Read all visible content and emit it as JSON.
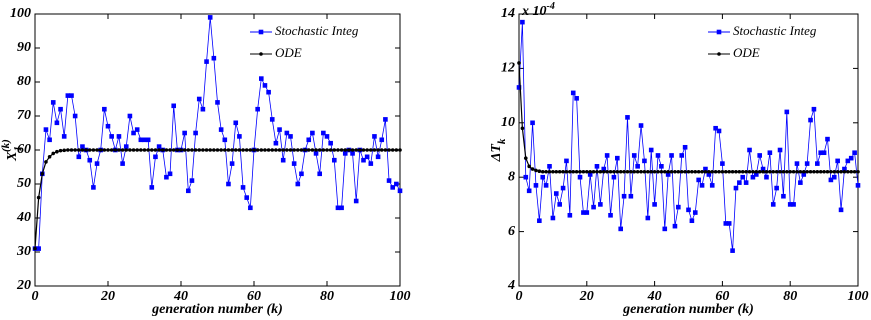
{
  "chart_data": [
    {
      "type": "line",
      "xlabel": "generation number (k)",
      "ylabel": {
        "base": "X",
        "sub": "1",
        "sup": "(k)"
      },
      "x": [
        0,
        1,
        2,
        3,
        4,
        5,
        6,
        7,
        8,
        9,
        10,
        11,
        12,
        13,
        14,
        15,
        16,
        17,
        18,
        19,
        20,
        21,
        22,
        23,
        24,
        25,
        26,
        27,
        28,
        29,
        30,
        31,
        32,
        33,
        34,
        35,
        36,
        37,
        38,
        39,
        40,
        41,
        42,
        43,
        44,
        45,
        46,
        47,
        48,
        49,
        50,
        51,
        52,
        53,
        54,
        55,
        56,
        57,
        58,
        59,
        60,
        61,
        62,
        63,
        64,
        65,
        66,
        67,
        68,
        69,
        70,
        71,
        72,
        73,
        74,
        75,
        76,
        77,
        78,
        79,
        80,
        81,
        82,
        83,
        84,
        85,
        86,
        87,
        88,
        89,
        90,
        91,
        92,
        93,
        94,
        95,
        96,
        97,
        98,
        99,
        100
      ],
      "series": [
        {
          "name": "Stochastic Integ",
          "color": "#0000ff",
          "marker": "square",
          "values": [
            31,
            31,
            53,
            66,
            63,
            74,
            68,
            72,
            64,
            76,
            76,
            70,
            58,
            61,
            60,
            57,
            49,
            56,
            60,
            72,
            67,
            64,
            60,
            64,
            56,
            61,
            70,
            65,
            66,
            63,
            63,
            63,
            49,
            58,
            61,
            60,
            52,
            53,
            73,
            60,
            60,
            65,
            48,
            51,
            65,
            75,
            72,
            86,
            99,
            87,
            74,
            66,
            63,
            50,
            56,
            68,
            64,
            49,
            46,
            43,
            60,
            72,
            81,
            79,
            77,
            69,
            62,
            66,
            57,
            65,
            64,
            56,
            50,
            53,
            60,
            63,
            65,
            59,
            53,
            65,
            64,
            62,
            57,
            43,
            43,
            59,
            60,
            59,
            45,
            60,
            57,
            58,
            56,
            64,
            58,
            63,
            69,
            51,
            49,
            50,
            48
          ]
        },
        {
          "name": "ODE",
          "color": "#000000",
          "marker": "dot",
          "values": [
            31,
            46,
            53,
            56.5,
            58,
            59,
            59.5,
            59.8,
            59.9,
            60,
            60,
            60,
            60,
            60,
            60,
            60,
            60,
            60,
            60,
            60,
            60,
            60,
            60,
            60,
            60,
            60,
            60,
            60,
            60,
            60,
            60,
            60,
            60,
            60,
            60,
            60,
            60,
            60,
            60,
            60,
            60,
            60,
            60,
            60,
            60,
            60,
            60,
            60,
            60,
            60,
            60,
            60,
            60,
            60,
            60,
            60,
            60,
            60,
            60,
            60,
            60,
            60,
            60,
            60,
            60,
            60,
            60,
            60,
            60,
            60,
            60,
            60,
            60,
            60,
            60,
            60,
            60,
            60,
            60,
            60,
            60,
            60,
            60,
            60,
            60,
            60,
            60,
            60,
            60,
            60,
            60,
            60,
            60,
            60,
            60,
            60,
            60,
            60,
            60,
            60,
            60
          ]
        }
      ],
      "xlim": [
        0,
        100
      ],
      "xticks": [
        0,
        20,
        40,
        60,
        80,
        100
      ],
      "ylim": [
        20,
        100
      ],
      "yticks": [
        20,
        30,
        40,
        50,
        60,
        70,
        80,
        90,
        100
      ],
      "legend": "upper right"
    },
    {
      "type": "line",
      "xlabel": "generation number (k)",
      "ylabel": {
        "base": "ΔT",
        "sub": "k"
      },
      "scale_note": {
        "base": "x 10",
        "sup": "-4"
      },
      "x": [
        0,
        1,
        2,
        3,
        4,
        5,
        6,
        7,
        8,
        9,
        10,
        11,
        12,
        13,
        14,
        15,
        16,
        17,
        18,
        19,
        20,
        21,
        22,
        23,
        24,
        25,
        26,
        27,
        28,
        29,
        30,
        31,
        32,
        33,
        34,
        35,
        36,
        37,
        38,
        39,
        40,
        41,
        42,
        43,
        44,
        45,
        46,
        47,
        48,
        49,
        50,
        51,
        52,
        53,
        54,
        55,
        56,
        57,
        58,
        59,
        60,
        61,
        62,
        63,
        64,
        65,
        66,
        67,
        68,
        69,
        70,
        71,
        72,
        73,
        74,
        75,
        76,
        77,
        78,
        79,
        80,
        81,
        82,
        83,
        84,
        85,
        86,
        87,
        88,
        89,
        90,
        91,
        92,
        93,
        94,
        95,
        96,
        97,
        98,
        99,
        100
      ],
      "series": [
        {
          "name": "Stochastic Integ",
          "color": "#0000ff",
          "marker": "square",
          "values": [
            11.3,
            13.7,
            8.0,
            7.5,
            10.0,
            7.7,
            6.4,
            8.0,
            7.7,
            8.4,
            6.5,
            7.4,
            7.0,
            7.6,
            8.6,
            6.6,
            11.1,
            10.9,
            8.0,
            6.7,
            6.7,
            8.1,
            6.9,
            8.4,
            7.0,
            8.3,
            8.8,
            6.6,
            8.0,
            8.7,
            6.1,
            7.3,
            10.2,
            7.3,
            8.8,
            8.4,
            9.9,
            8.6,
            6.5,
            9.0,
            7.0,
            8.8,
            8.4,
            6.1,
            8.1,
            8.8,
            6.2,
            6.9,
            8.8,
            9.1,
            6.8,
            6.4,
            6.7,
            7.9,
            7.7,
            8.3,
            8.1,
            7.7,
            9.8,
            9.7,
            8.5,
            6.3,
            6.3,
            5.3,
            7.6,
            7.8,
            8.0,
            7.8,
            9.0,
            8.0,
            8.1,
            8.8,
            8.3,
            8.0,
            8.9,
            7.0,
            7.6,
            9.0,
            7.3,
            10.4,
            7.0,
            7.0,
            8.5,
            7.8,
            8.1,
            8.5,
            10.1,
            10.5,
            8.5,
            8.9,
            8.9,
            9.4,
            7.9,
            8.0,
            8.6,
            6.8,
            8.3,
            8.6,
            8.7,
            8.9,
            7.7
          ]
        },
        {
          "name": "ODE",
          "color": "#000000",
          "marker": "dot",
          "values": [
            12.2,
            9.8,
            8.7,
            8.4,
            8.3,
            8.25,
            8.22,
            8.2,
            8.2,
            8.2,
            8.2,
            8.2,
            8.2,
            8.2,
            8.2,
            8.2,
            8.2,
            8.2,
            8.2,
            8.2,
            8.2,
            8.2,
            8.2,
            8.2,
            8.2,
            8.2,
            8.2,
            8.2,
            8.2,
            8.2,
            8.2,
            8.2,
            8.2,
            8.2,
            8.2,
            8.2,
            8.2,
            8.2,
            8.2,
            8.2,
            8.2,
            8.2,
            8.2,
            8.2,
            8.2,
            8.2,
            8.2,
            8.2,
            8.2,
            8.2,
            8.2,
            8.2,
            8.2,
            8.2,
            8.2,
            8.2,
            8.2,
            8.2,
            8.2,
            8.2,
            8.2,
            8.2,
            8.2,
            8.2,
            8.2,
            8.2,
            8.2,
            8.2,
            8.2,
            8.2,
            8.2,
            8.2,
            8.2,
            8.2,
            8.2,
            8.2,
            8.2,
            8.2,
            8.2,
            8.2,
            8.2,
            8.2,
            8.2,
            8.2,
            8.2,
            8.2,
            8.2,
            8.2,
            8.2,
            8.2,
            8.2,
            8.2,
            8.2,
            8.2,
            8.2,
            8.2,
            8.2,
            8.2,
            8.2,
            8.2,
            8.2
          ]
        }
      ],
      "xlim": [
        0,
        100
      ],
      "xticks": [
        0,
        20,
        40,
        60,
        80,
        100
      ],
      "ylim": [
        4,
        14
      ],
      "yticks": [
        4,
        6,
        8,
        10,
        12,
        14
      ],
      "legend": "upper right"
    }
  ]
}
